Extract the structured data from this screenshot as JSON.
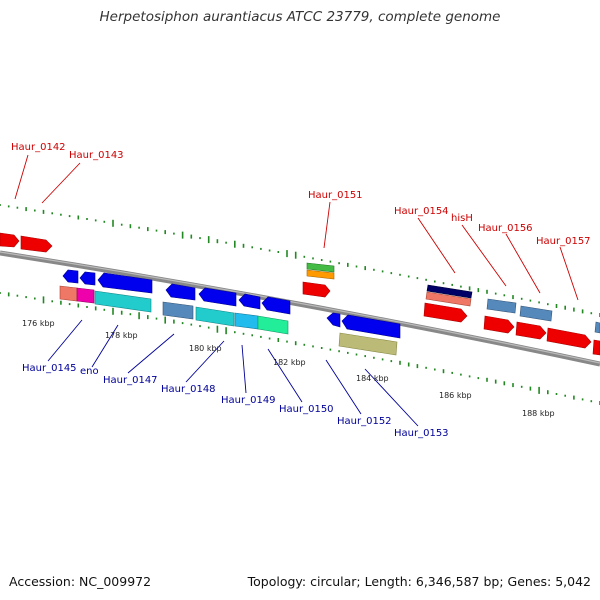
{
  "title": "Herpetosiphon aurantiacus ATCC 23779, complete genome",
  "accession": "Accession: NC_009972",
  "stats": "Topology: circular; Length: 6,346,587 bp; Genes: 5,042",
  "colors": {
    "backbone": "#888888",
    "upper_gene_label": "#cc0000",
    "lower_gene_label": "#000099",
    "gc_tick": "#228822",
    "forward_gene": "#0000ee",
    "reverse_gene": "#ee0000"
  },
  "kbp_labels": [
    "176 kbp",
    "178 kbp",
    "180 kbp",
    "182 kbp",
    "184 kbp",
    "186 kbp",
    "188 kbp"
  ],
  "gene_labels_upper": [
    "Haur_0142",
    "Haur_0143",
    "Haur_0151",
    "Haur_0154",
    "hisH",
    "Haur_0156",
    "Haur_0157"
  ],
  "gene_labels_lower": [
    "Haur_0145",
    "eno",
    "Haur_0147",
    "Haur_0148",
    "Haur_0149",
    "Haur_0150",
    "Haur_0152",
    "Haur_0153"
  ]
}
